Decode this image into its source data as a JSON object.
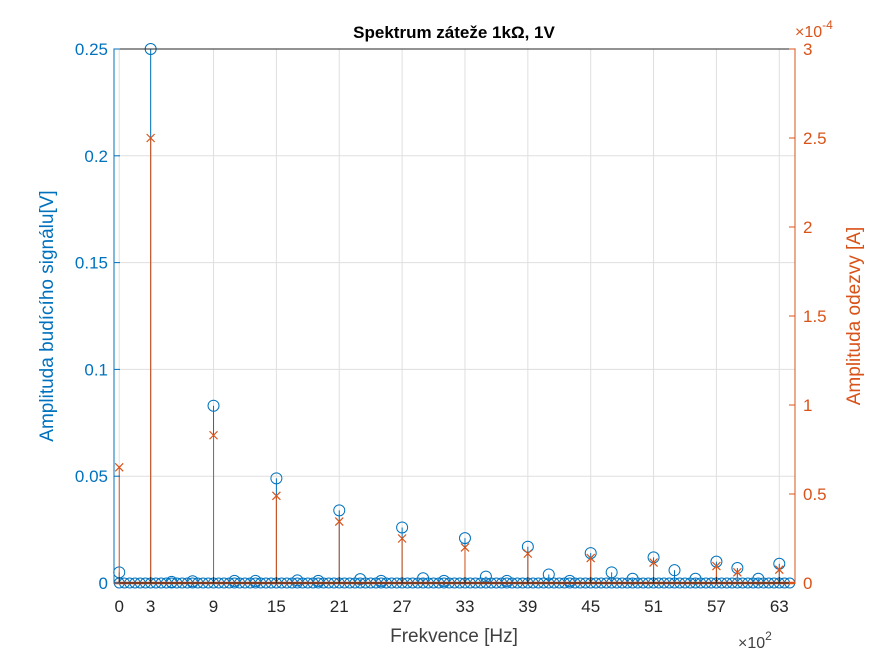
{
  "chart_data": {
    "type": "stem",
    "title": "Spektrum záteže 1kΩ, 1V",
    "xlabel": "Frekvence [Hz]",
    "x_multiplier_label": "×10",
    "x_multiplier_exp": "2",
    "xlim": [
      -0.5,
      64.5
    ],
    "xticks": [
      0,
      3,
      9,
      15,
      21,
      27,
      33,
      39,
      45,
      51,
      57,
      63
    ],
    "grid": true,
    "left_axis": {
      "label": "Amplituda budícího signálu[V]",
      "ylim": [
        0,
        0.25
      ],
      "ticks": [
        "0",
        "0.05",
        "0.1",
        "0.15",
        "0.2",
        "0.25"
      ],
      "tick_values": [
        0,
        0.05,
        0.1,
        0.15,
        0.2,
        0.25
      ],
      "color": "#0072BD"
    },
    "right_axis": {
      "label": "Amplituda odezvy [A]",
      "ylim": [
        0,
        3
      ],
      "ticks": [
        "0",
        "0.5",
        "1",
        "1.5",
        "2",
        "2.5",
        "3"
      ],
      "tick_values": [
        0,
        0.5,
        1,
        1.5,
        2,
        2.5,
        3
      ],
      "multiplier_label": "×10",
      "multiplier_exp": "-4",
      "color": "#D95319"
    },
    "series": [
      {
        "name": "Amplituda budícího signálu",
        "axis": "left",
        "marker": "circle",
        "x": [
          0,
          3,
          5,
          7,
          9,
          11,
          13,
          15,
          17,
          19,
          21,
          23,
          25,
          27,
          29,
          31,
          33,
          35,
          37,
          39,
          41,
          43,
          45,
          47,
          49,
          51,
          53,
          55,
          57,
          59,
          61,
          63
        ],
        "values": [
          0.005,
          0.25,
          0.0005,
          0.0008,
          0.083,
          0.001,
          0.001,
          0.049,
          0.0012,
          0.001,
          0.034,
          0.0018,
          0.001,
          0.026,
          0.0022,
          0.001,
          0.021,
          0.003,
          0.001,
          0.017,
          0.004,
          0.001,
          0.014,
          0.005,
          0.002,
          0.012,
          0.006,
          0.002,
          0.01,
          0.007,
          0.002,
          0.009
        ]
      },
      {
        "name": "Amplituda odezvy",
        "axis": "right",
        "marker": "x",
        "x": [
          0,
          3,
          9,
          15,
          21,
          27,
          33,
          39,
          45,
          51,
          57,
          59,
          63
        ],
        "values": [
          0.65,
          2.5,
          0.83,
          0.49,
          0.345,
          0.25,
          0.2,
          0.165,
          0.14,
          0.115,
          0.095,
          0.06,
          0.075
        ]
      }
    ]
  }
}
